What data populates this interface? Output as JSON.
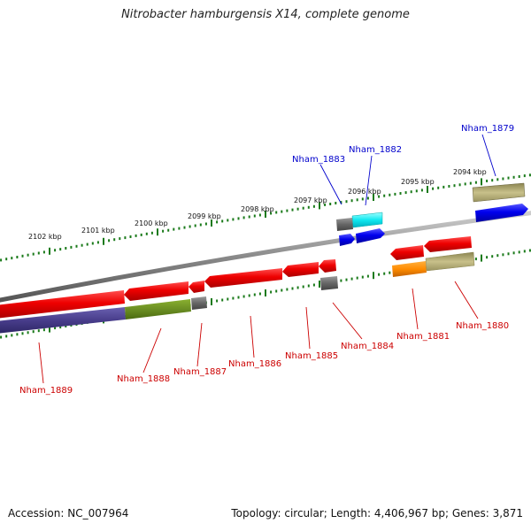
{
  "title": "Nitrobacter hamburgensis X14, complete genome",
  "footer": {
    "accession": "Accession: NC_007964",
    "summary": "Topology: circular; Length: 4,406,967 bp; Genes: 3,871"
  },
  "scale_labels": [
    "2094 kbp",
    "2095 kbp",
    "2096 kbp",
    "2097 kbp",
    "2098 kbp",
    "2099 kbp",
    "2100 kbp",
    "2101 kbp",
    "2102 kbp"
  ],
  "colors": {
    "label_forward": "#0000cc",
    "label_reverse": "#cc0000",
    "backbone": "#888888",
    "tick": "#1a7a1a"
  },
  "gene_labels": [
    {
      "text": "Nham_1879",
      "strand": "forward"
    },
    {
      "text": "Nham_1882",
      "strand": "forward"
    },
    {
      "text": "Nham_1883",
      "strand": "forward"
    },
    {
      "text": "Nham_1880",
      "strand": "reverse"
    },
    {
      "text": "Nham_1881",
      "strand": "reverse"
    },
    {
      "text": "Nham_1884",
      "strand": "reverse"
    },
    {
      "text": "Nham_1885",
      "strand": "reverse"
    },
    {
      "text": "Nham_1886",
      "strand": "reverse"
    },
    {
      "text": "Nham_1887",
      "strand": "reverse"
    },
    {
      "text": "Nham_1888",
      "strand": "reverse"
    },
    {
      "text": "Nham_1889",
      "strand": "reverse"
    }
  ]
}
